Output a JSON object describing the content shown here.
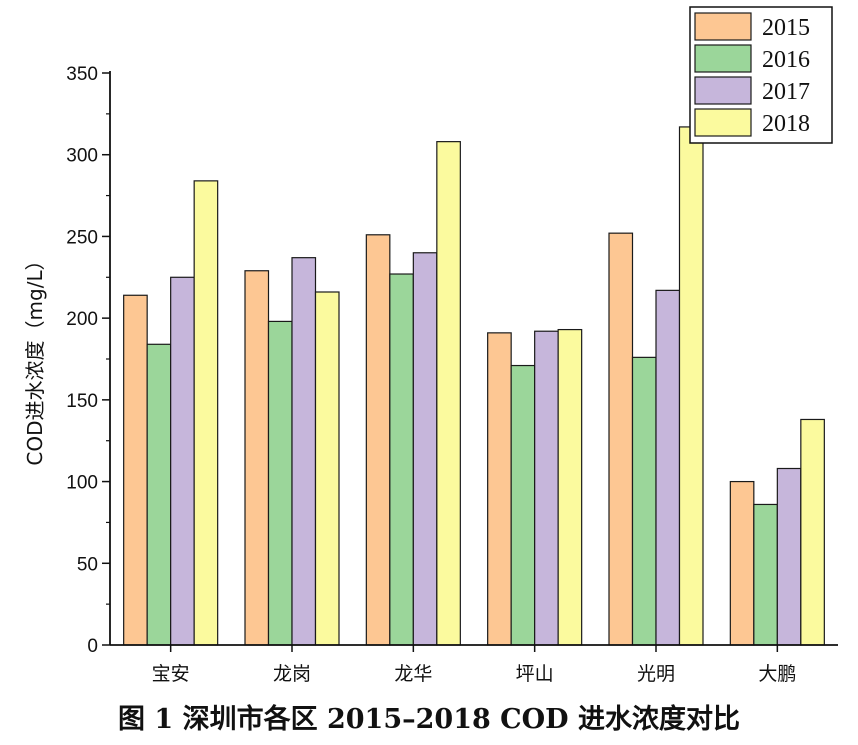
{
  "chart_data": {
    "type": "bar",
    "title": "",
    "xlabel": "",
    "ylabel": "COD进水浓度（mg/L）",
    "ylim": [
      0,
      350
    ],
    "yticks": [
      0,
      50,
      100,
      150,
      200,
      250,
      300,
      350
    ],
    "categories": [
      "宝安",
      "龙岗",
      "龙华",
      "坪山",
      "光明",
      "大鹏"
    ],
    "series": [
      {
        "name": "2015",
        "color": "#FDC793",
        "values": [
          214,
          229,
          251,
          191,
          252,
          100
        ]
      },
      {
        "name": "2016",
        "color": "#9BD69A",
        "values": [
          184,
          198,
          227,
          171,
          176,
          86
        ]
      },
      {
        "name": "2017",
        "color": "#C6B6DB",
        "values": [
          225,
          237,
          240,
          192,
          217,
          108
        ]
      },
      {
        "name": "2018",
        "color": "#FBFA9E",
        "values": [
          284,
          216,
          308,
          193,
          317,
          138
        ]
      }
    ],
    "legend_position": "top-right",
    "grid": false
  },
  "caption": "图 1   深圳市各区 2015–2018 COD 进水浓度对比"
}
